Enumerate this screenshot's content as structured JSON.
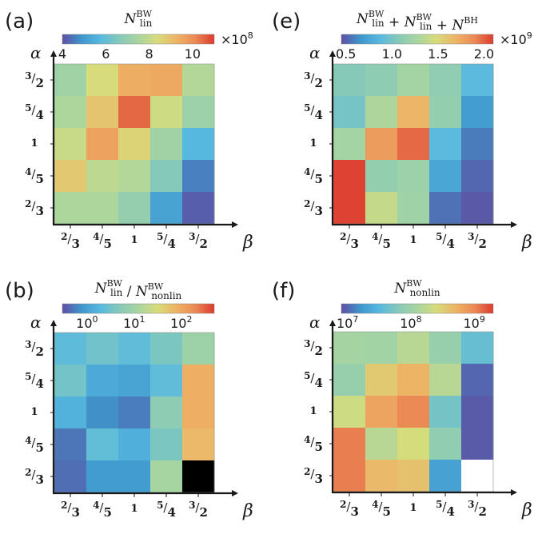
{
  "figure": {
    "colormap": [
      "#5e4fa2",
      "#3f96cc",
      "#57b9e0",
      "#86c9b9",
      "#a8d5a0",
      "#d6dc7c",
      "#eeb466",
      "#eb8a55",
      "#dc3a2f"
    ],
    "alpha_label": "α",
    "beta_label": "β"
  },
  "chart_data": [
    {
      "type": "heatmap",
      "panel_label": "(a)",
      "title_main": "N",
      "title_sup": "BW",
      "title_sub": "lin",
      "title_parts": [
        {
          "main": "N",
          "sup": "BW",
          "sub": "lin"
        }
      ],
      "colorbar": {
        "scale": "linear",
        "range": [
          4,
          11
        ],
        "ticks": [
          4,
          6,
          8,
          10
        ],
        "tick_labels": [
          "4",
          "6",
          "8",
          "10"
        ],
        "multiplier": "×10",
        "multiplier_exp": "8"
      },
      "xlabel": "β",
      "ylabel": "α",
      "x_categories": [
        "2/3",
        "4/5",
        "1",
        "5/4",
        "3/2"
      ],
      "y_categories": [
        "2/3",
        "4/5",
        "1",
        "5/4",
        "3/2"
      ],
      "values_by_row_top_to_bottom": [
        [
          7.3,
          8.4,
          9.4,
          9.5,
          7.7
        ],
        [
          7.6,
          8.9,
          10.5,
          8.2,
          7.2
        ],
        [
          8.1,
          9.6,
          8.6,
          7.3,
          5.7
        ],
        [
          8.8,
          7.9,
          7.7,
          6.6,
          4.6
        ],
        [
          7.6,
          7.6,
          7.0,
          5.2,
          4.2
        ]
      ],
      "missing": [],
      "grid": false
    },
    {
      "type": "heatmap",
      "panel_label": "(e)",
      "title_parts": [
        {
          "main": "N",
          "sup": "BW",
          "sub": "lin"
        },
        {
          "main": "N",
          "sup": "BW",
          "sub": "lin"
        },
        {
          "main": "N",
          "sup": "BH",
          "sub": ""
        }
      ],
      "title_ops": [
        " + ",
        " + "
      ],
      "colorbar": {
        "scale": "linear",
        "range": [
          0.45,
          2.1
        ],
        "ticks": [
          0.5,
          1.0,
          1.5,
          2.0
        ],
        "tick_labels": [
          "0.5",
          "1.0",
          "1.5",
          "2.0"
        ],
        "multiplier": "×10",
        "multiplier_exp": "9"
      },
      "xlabel": "β",
      "ylabel": "α",
      "x_categories": [
        "2/3",
        "4/5",
        "1",
        "5/4",
        "3/2"
      ],
      "y_categories": [
        "2/3",
        "4/5",
        "1",
        "5/4",
        "3/2"
      ],
      "values_by_row_top_to_bottom": [
        [
          1.07,
          1.12,
          1.25,
          1.13,
          0.88
        ],
        [
          1.0,
          1.3,
          1.68,
          1.15,
          0.7
        ],
        [
          1.25,
          1.8,
          1.98,
          0.88,
          0.58
        ],
        [
          2.08,
          1.15,
          1.2,
          0.75,
          0.52
        ],
        [
          2.08,
          1.4,
          1.22,
          0.55,
          0.48
        ]
      ],
      "missing": [],
      "grid": false
    },
    {
      "type": "heatmap",
      "panel_label": "(b)",
      "title_parts": [
        {
          "main": "N",
          "sup": "BW",
          "sub": "lin"
        },
        {
          "main": "N",
          "sup": "BW",
          "sub": "nonlin"
        }
      ],
      "title_ops": [
        " / "
      ],
      "colorbar": {
        "scale": "log",
        "range": [
          0.3,
          500
        ],
        "ticks": [
          1,
          10,
          100
        ],
        "tick_labels": [
          "10",
          "10",
          "10"
        ],
        "tick_exps": [
          "0",
          "1",
          "2"
        ],
        "multiplier": "",
        "multiplier_exp": ""
      },
      "xlabel": "β",
      "ylabel": "α",
      "x_categories": [
        "2/3",
        "4/5",
        "1",
        "5/4",
        "3/2"
      ],
      "y_categories": [
        "2/3",
        "4/5",
        "1",
        "5/4",
        "3/2"
      ],
      "values_by_row_top_to_bottom": [
        [
          2.2,
          3.2,
          2.3,
          4.0,
          9.0
        ],
        [
          3.4,
          1.3,
          1.1,
          2.3,
          90
        ],
        [
          1.6,
          0.7,
          0.55,
          6.0,
          90
        ],
        [
          0.5,
          2.4,
          1.5,
          4.0,
          70
        ],
        [
          0.45,
          0.9,
          0.9,
          12,
          null
        ]
      ],
      "missing": [
        [
          4,
          4
        ]
      ],
      "missing_color": "#000000",
      "grid": false
    },
    {
      "type": "heatmap",
      "panel_label": "(f)",
      "title_parts": [
        {
          "main": "N",
          "sup": "BW",
          "sub": "nonlin"
        }
      ],
      "colorbar": {
        "scale": "log",
        "range": [
          8000000.0,
          2000000000.0
        ],
        "ticks": [
          10000000.0,
          100000000.0,
          1000000000.0
        ],
        "tick_labels": [
          "10",
          "10",
          "10"
        ],
        "tick_exps": [
          "7",
          "8",
          "9"
        ],
        "multiplier": "",
        "multiplier_exp": ""
      },
      "xlabel": "β",
      "ylabel": "α",
      "x_categories": [
        "2/3",
        "4/5",
        "1",
        "5/4",
        "3/2"
      ],
      "y_categories": [
        "2/3",
        "4/5",
        "1",
        "5/4",
        "3/2"
      ],
      "values_by_row_top_to_bottom": [
        [
          120000000.0,
          110000000.0,
          160000000.0,
          90000000.0,
          40000000.0
        ],
        [
          90000000.0,
          350000000.0,
          500000000.0,
          160000000.0,
          10000000.0
        ],
        [
          220000000.0,
          650000000.0,
          1000000000.0,
          50000000.0,
          9000000.0
        ],
        [
          1100000000.0,
          160000000.0,
          250000000.0,
          80000000.0,
          9000000.0
        ],
        [
          1100000000.0,
          450000000.0,
          400000000.0,
          20000000.0,
          null
        ]
      ],
      "missing": [
        [
          4,
          4
        ]
      ],
      "missing_color": "#ffffff",
      "grid": false
    }
  ]
}
